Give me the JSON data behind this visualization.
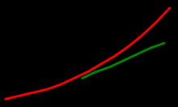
{
  "background_color": "#000000",
  "red_line": {
    "x": [
      0,
      5,
      10,
      15,
      20,
      25,
      30,
      35,
      40,
      45,
      50,
      55,
      60
    ],
    "y": [
      0,
      2,
      4,
      6,
      9,
      13,
      17,
      22,
      27,
      33,
      40,
      48,
      57
    ],
    "color": "#ff0000",
    "linewidth": 2.0
  },
  "green_line": {
    "x": [
      28,
      33,
      38,
      43,
      48,
      53,
      58
    ],
    "y": [
      13,
      17,
      20,
      24,
      28,
      32,
      35
    ],
    "color": "#008800",
    "linewidth": 2.0
  },
  "xlim": [
    -2,
    63
  ],
  "ylim": [
    -5,
    62
  ],
  "grid_color": "#333333",
  "grid_alpha": 1.0,
  "grid_linewidth": 0.4
}
